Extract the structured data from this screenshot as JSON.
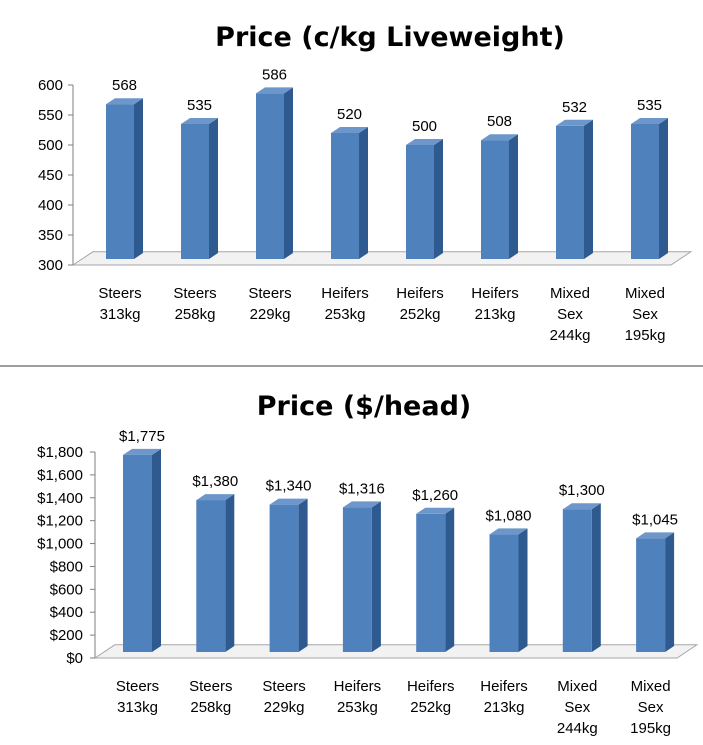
{
  "colors": {
    "bar_front": "#4f81bd",
    "bar_side": "#2e5a8f",
    "bar_top": "#6d97cb",
    "divider": "#7f7f7f"
  },
  "chart_data": [
    {
      "type": "bar",
      "title": "Price (c/kg Liveweight)",
      "xlabel": "",
      "ylabel": "",
      "categories": [
        [
          "Steers",
          "313kg"
        ],
        [
          "Steers",
          "258kg"
        ],
        [
          "Steers",
          "229kg"
        ],
        [
          "Heifers",
          "253kg"
        ],
        [
          "Heifers",
          "252kg"
        ],
        [
          "Heifers",
          "213kg"
        ],
        [
          "Mixed",
          "Sex",
          "244kg"
        ],
        [
          "Mixed",
          "Sex",
          "195kg"
        ]
      ],
      "values": [
        568,
        535,
        586,
        520,
        500,
        508,
        532,
        535
      ],
      "value_labels": [
        "568",
        "535",
        "586",
        "520",
        "500",
        "508",
        "532",
        "535"
      ],
      "ylim": [
        300,
        600
      ],
      "yticks": [
        "300",
        "350",
        "400",
        "450",
        "500",
        "550",
        "600"
      ],
      "grid": false,
      "style": "3d-column"
    },
    {
      "type": "bar",
      "title": "Price ($/head)",
      "xlabel": "",
      "ylabel": "",
      "categories": [
        [
          "Steers",
          "313kg"
        ],
        [
          "Steers",
          "258kg"
        ],
        [
          "Steers",
          "229kg"
        ],
        [
          "Heifers",
          "253kg"
        ],
        [
          "Heifers",
          "252kg"
        ],
        [
          "Heifers",
          "213kg"
        ],
        [
          "Mixed",
          "Sex",
          "244kg"
        ],
        [
          "Mixed",
          "Sex",
          "195kg"
        ]
      ],
      "values": [
        1775,
        1380,
        1340,
        1316,
        1260,
        1080,
        1300,
        1045
      ],
      "value_labels": [
        "$1,775",
        "$1,380",
        "$1,340",
        "$1,316",
        "$1,260",
        "$1,080",
        "$1,300",
        "$1,045"
      ],
      "ylim": [
        0,
        1800
      ],
      "yticks": [
        "$0",
        "$200",
        "$400",
        "$600",
        "$800",
        "$1,000",
        "$1,200",
        "$1,400",
        "$1,600",
        "$1,800"
      ],
      "grid": false,
      "style": "3d-column"
    }
  ]
}
